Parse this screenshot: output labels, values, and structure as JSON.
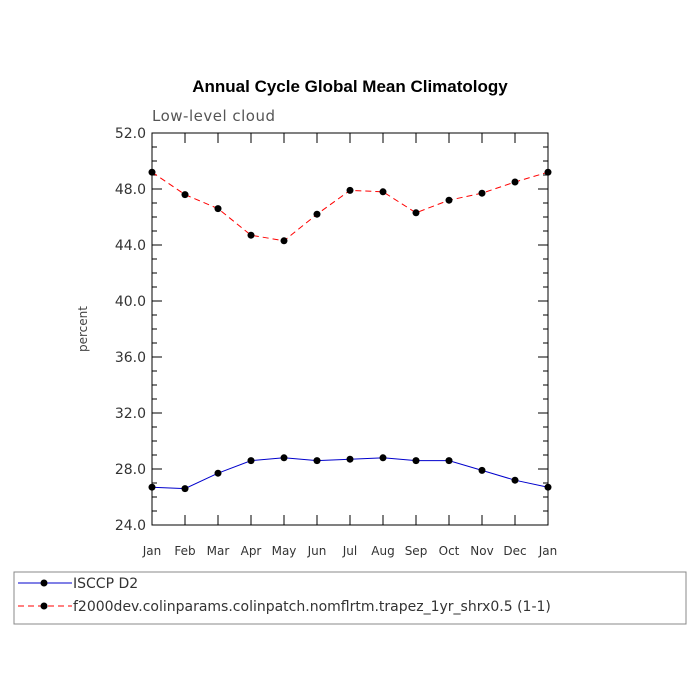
{
  "chart_data": {
    "type": "line",
    "title": "Annual Cycle Global Mean Climatology",
    "subtitle": "Low-level cloud",
    "xlabel": "",
    "ylabel": "percent",
    "categories": [
      "Jan",
      "Feb",
      "Mar",
      "Apr",
      "May",
      "Jun",
      "Jul",
      "Aug",
      "Sep",
      "Oct",
      "Nov",
      "Dec",
      "Jan"
    ],
    "ylim": [
      24.0,
      52.0
    ],
    "yticks": [
      "24.0",
      "28.0",
      "32.0",
      "36.0",
      "40.0",
      "44.0",
      "48.0",
      "52.0"
    ],
    "series": [
      {
        "name": "ISCCP D2",
        "color": "#0000cc",
        "dash": "solid",
        "values": [
          26.7,
          26.6,
          27.7,
          28.6,
          28.8,
          28.6,
          28.7,
          28.8,
          28.6,
          28.6,
          27.9,
          27.2,
          26.7
        ]
      },
      {
        "name": "f2000dev.colinparams.colinpatch.nomflrtm.trapez_1yr_shrx0.5 (1-1)",
        "color": "#ff0000",
        "dash": "dashed",
        "values": [
          49.2,
          47.6,
          46.6,
          44.7,
          44.3,
          46.2,
          47.9,
          47.8,
          46.3,
          47.2,
          47.7,
          48.5,
          49.2
        ]
      }
    ],
    "legend": "bottom"
  }
}
